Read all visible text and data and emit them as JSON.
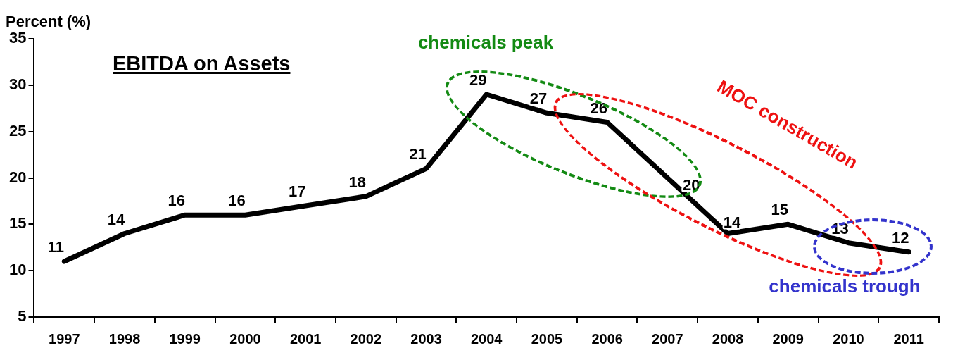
{
  "chart_data": {
    "type": "line",
    "title": "EBITDA on Assets",
    "ylabel": "Percent (%)",
    "categories": [
      "1997",
      "1998",
      "1999",
      "2000",
      "2001",
      "2002",
      "2003",
      "2004",
      "2005",
      "2006",
      "2007",
      "2008",
      "2009",
      "2010",
      "2011"
    ],
    "series": [
      {
        "color": "#000000",
        "values": [
          11,
          14,
          16,
          16,
          17,
          18,
          21,
          29,
          27,
          26,
          20,
          14,
          15,
          13,
          12
        ]
      }
    ],
    "ylim": [
      5,
      35
    ],
    "yticks": [
      5,
      10,
      15,
      20,
      25,
      30,
      35
    ],
    "grid": false,
    "legend": false,
    "marker": "none",
    "line_style": "solid",
    "data_labels": true,
    "annotations": [
      "chemicals peak",
      "MOC construction",
      "chemicals trough"
    ]
  }
}
